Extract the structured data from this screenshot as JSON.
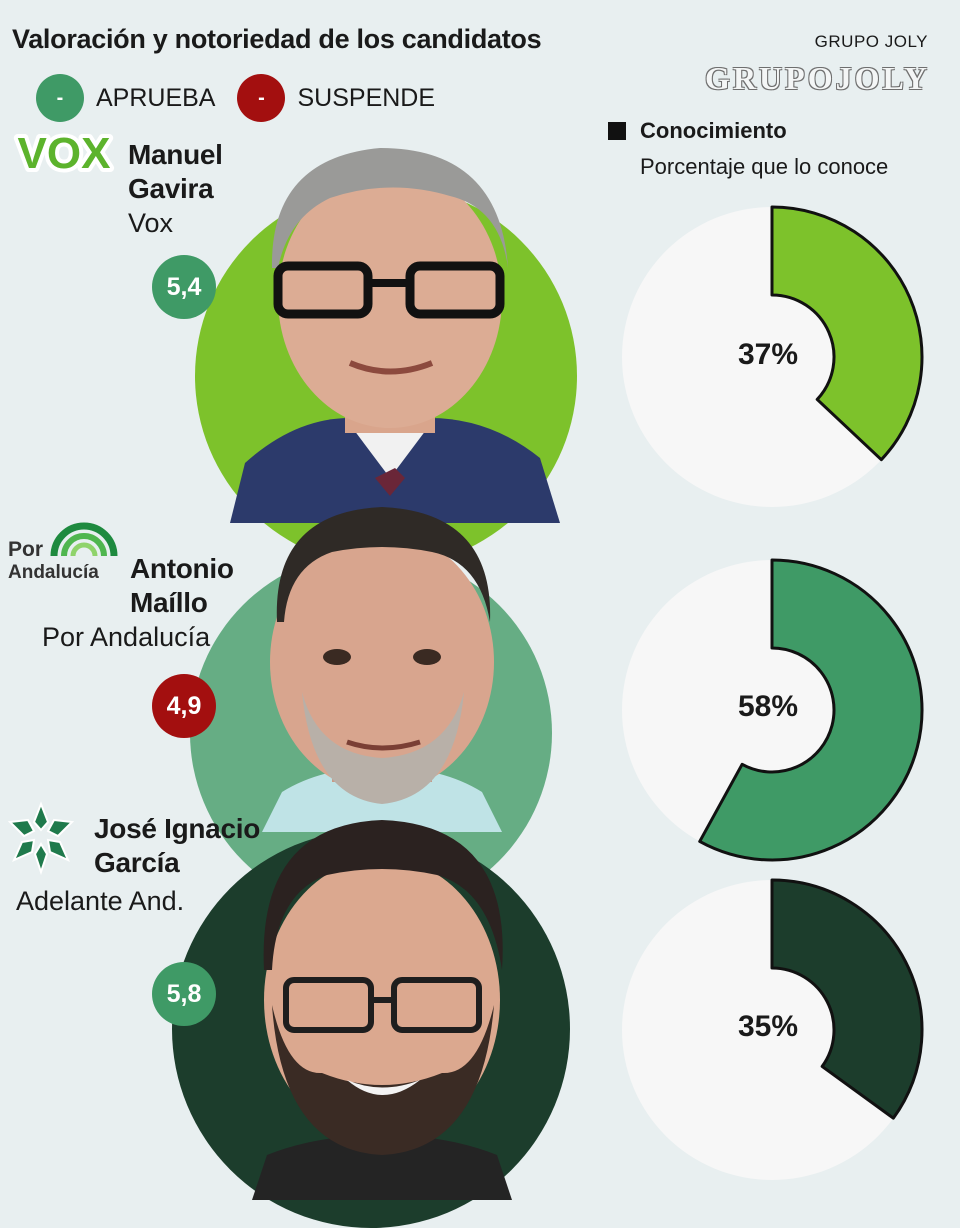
{
  "header": {
    "title": "Valoración y notoriedad de los candidatos",
    "brand_small": "GRUPO JOLY",
    "brand_logo": "GRUPOJOLY"
  },
  "legend": {
    "approve_symbol": "-",
    "approve_label": "APRUEBA",
    "approve_color": "#3f9a66",
    "fail_symbol": "-",
    "fail_label": "SUSPENDE",
    "fail_color": "#a30f0f"
  },
  "knowledge": {
    "title": "Conocimiento",
    "subtitle": "Porcentaje que lo conoce"
  },
  "candidates": [
    {
      "name_line1": "Manuel",
      "name_line2": "Gavira",
      "party": "Vox",
      "logo_text": "VOX",
      "score": "5,4",
      "status": "approve",
      "circle_color": "#7dc22b",
      "knowledge_label": "37%"
    },
    {
      "name_line1": "Antonio",
      "name_line2": "Maíllo",
      "party": "Por Andalucía",
      "logo_text_top": "Por",
      "logo_text_bottom": "Andalucía",
      "score": "4,9",
      "status": "fail",
      "circle_color": "#66ad84",
      "knowledge_label": "58%"
    },
    {
      "name_line1": "José Ignacio",
      "name_line2": "García",
      "party": "Adelante And.",
      "score": "5,8",
      "status": "approve",
      "circle_color": "#1c3d2c",
      "knowledge_label": "35%"
    }
  ],
  "chart_data": {
    "type": "pie",
    "title": "Conocimiento",
    "subtitle": "Porcentaje que lo conoce",
    "categories": [
      "Manuel Gavira",
      "Antonio Maíllo",
      "José Ignacio García"
    ],
    "values": [
      37,
      58,
      35
    ],
    "unit": "%",
    "score_values": [
      5.4,
      4.9,
      5.8
    ],
    "colors": [
      "#7dc22b",
      "#3f9a66",
      "#1c3d2c"
    ]
  }
}
